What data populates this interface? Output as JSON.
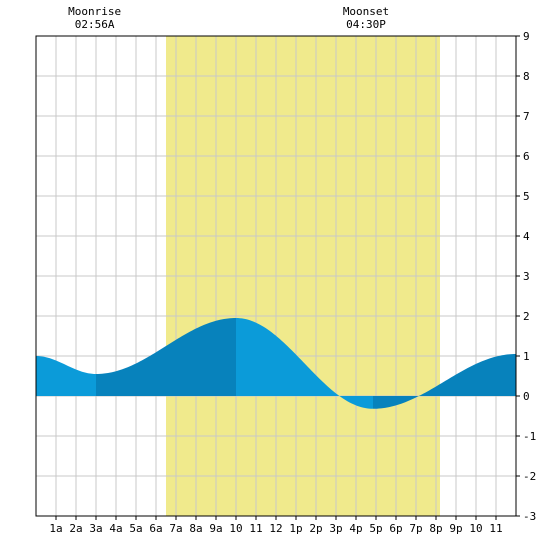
{
  "chart_data": {
    "type": "area",
    "title": "",
    "xlabel": "",
    "ylabel": "",
    "xlim": [
      0,
      24
    ],
    "ylim": [
      -3,
      9
    ],
    "y_ticks": [
      9,
      8,
      7,
      6,
      5,
      4,
      3,
      2,
      1,
      0,
      -1,
      -2,
      -3
    ],
    "y_axis_side": "right",
    "x_tick_labels": [
      "1a",
      "2a",
      "3a",
      "4a",
      "5a",
      "6a",
      "7a",
      "8a",
      "9a",
      "10",
      "11",
      "12",
      "1p",
      "2p",
      "3p",
      "4p",
      "5p",
      "6p",
      "7p",
      "8p",
      "9p",
      "10",
      "11"
    ],
    "grid": true,
    "daylight": {
      "start_hour": 6.5,
      "end_hour": 20.2
    },
    "annotations": [
      {
        "title": "Moonrise",
        "time": "02:56A",
        "hour": 2.93
      },
      {
        "title": "Moonset",
        "time": "04:30P",
        "hour": 16.5
      }
    ],
    "tide_extremes": [
      {
        "hour": 0.0,
        "height": 1.0
      },
      {
        "hour": 3.0,
        "height": 0.55
      },
      {
        "hour": 10.0,
        "height": 1.95
      },
      {
        "hour": 16.85,
        "height": -0.32
      },
      {
        "hour": 24.0,
        "height": 1.05
      }
    ],
    "bands": [
      {
        "from": 0.0,
        "to": 3.0,
        "shade": "light"
      },
      {
        "from": 3.0,
        "to": 10.0,
        "shade": "dark"
      },
      {
        "from": 10.0,
        "to": 16.85,
        "shade": "light"
      },
      {
        "from": 16.85,
        "to": 24.0,
        "shade": "dark"
      }
    ],
    "colors": {
      "daylight": "#f0ea8c",
      "tide_light": "#0b9bd9",
      "tide_dark": "#0782bc",
      "grid": "#c8c8c8",
      "axis": "#000000"
    }
  }
}
